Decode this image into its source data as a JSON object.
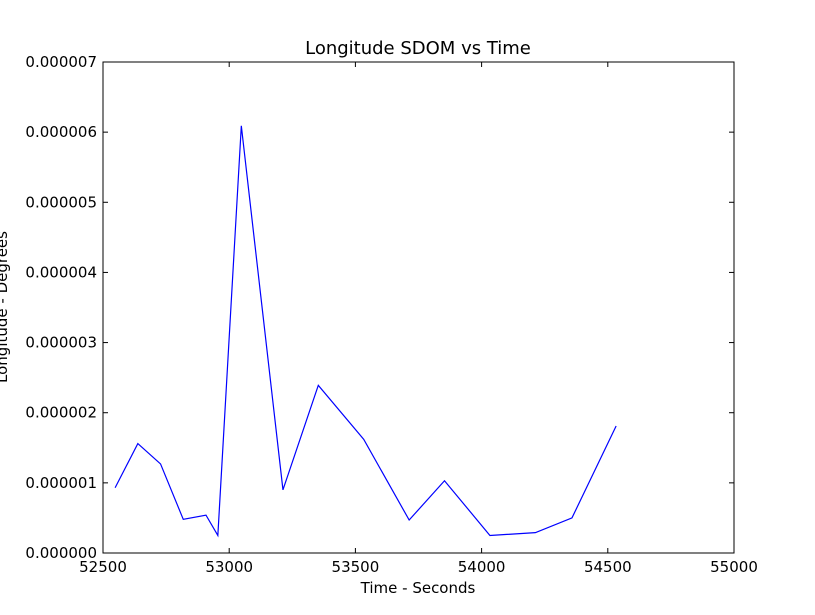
{
  "chart_data": {
    "type": "line",
    "title": "Longitude SDOM vs Time",
    "xlabel": "Time - Seconds",
    "ylabel": "Longitude - Degrees",
    "xlim": [
      52500,
      55000
    ],
    "ylim": [
      0,
      7e-06
    ],
    "xticks": [
      52500,
      53000,
      53500,
      54000,
      54500,
      55000
    ],
    "xtick_labels": [
      "52500",
      "53000",
      "53500",
      "54000",
      "54500",
      "55000"
    ],
    "yticks": [
      0,
      1e-06,
      2e-06,
      3e-06,
      4e-06,
      5e-06,
      6e-06,
      7e-06
    ],
    "ytick_labels": [
      "0.000000",
      "0.000001",
      "0.000002",
      "0.000003",
      "0.000004",
      "0.000005",
      "0.000006",
      "0.000007"
    ],
    "grid": false,
    "series": [
      {
        "color": "#0000ff",
        "x": [
          52548,
          52638,
          52728,
          52818,
          52908,
          52955,
          53048,
          53213,
          53353,
          53533,
          53713,
          53853,
          54033,
          54213,
          54358,
          54533
        ],
        "y": [
          9.3e-07,
          1.56e-06,
          1.27e-06,
          4.8e-07,
          5.4e-07,
          2.5e-07,
          6.09e-06,
          9e-07,
          2.39e-06,
          1.62e-06,
          4.7e-07,
          1.03e-06,
          2.5e-07,
          2.9e-07,
          5e-07,
          1.81e-06
        ]
      }
    ]
  }
}
